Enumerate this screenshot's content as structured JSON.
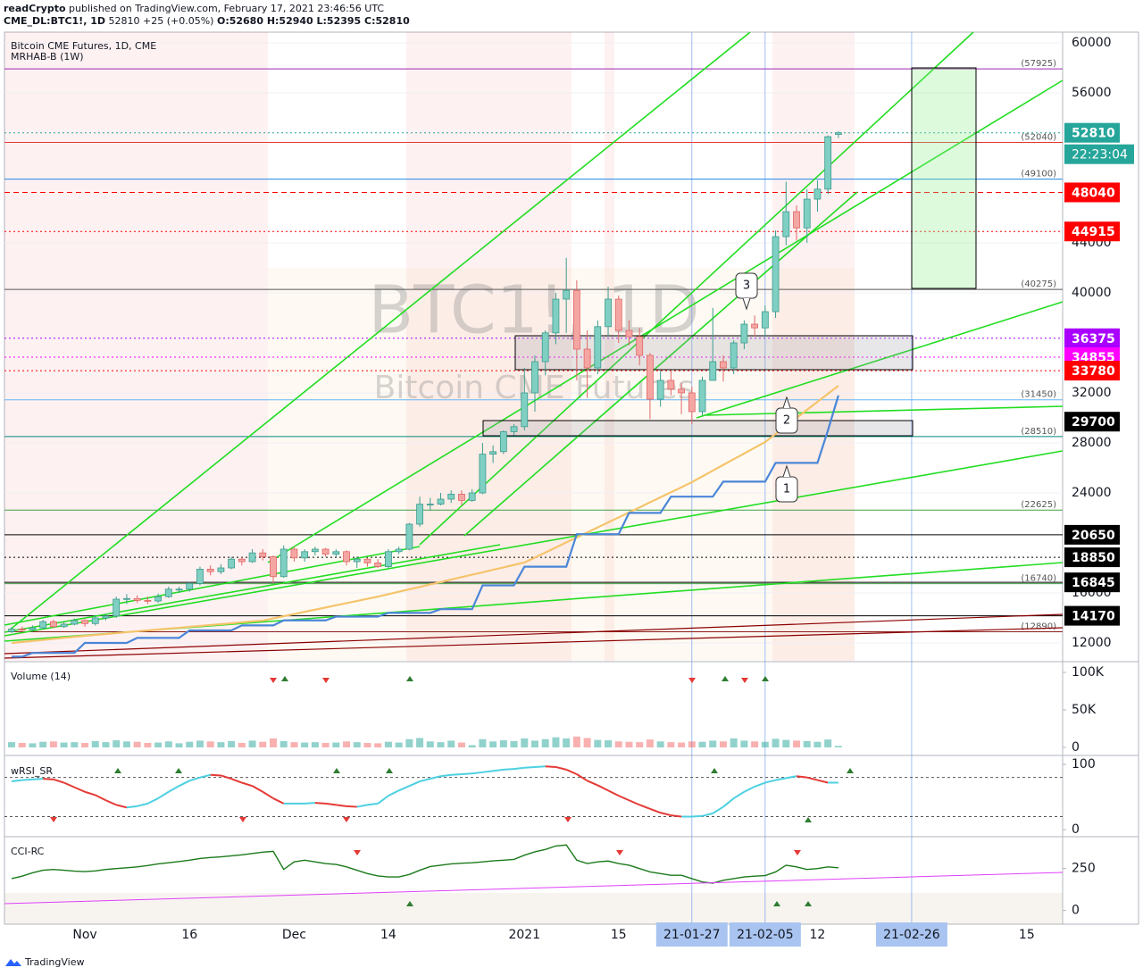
{
  "header": {
    "publisher": "readCrypto",
    "published": "published on TradingView.com, February 17, 2021 23:46:56 UTC",
    "symbol": "CME_DL:BTC1!, 1D",
    "last": "52810",
    "change": "+25 (+0.05%)",
    "ohlc": "O:52680 H:52940 L:52395 C:52810"
  },
  "footer": {
    "brand": "TradingView"
  },
  "chart_data": [
    {
      "type": "candlestick",
      "title": "Bitcoin CME Futures, 1D, CME",
      "subtitle": "MRHAB-B (1W)",
      "watermark": "BTC1!, 1D",
      "watermark_subtitle": "Bitcoin CME Futures",
      "categories": [
        null,
        null,
        null,
        null,
        null,
        null,
        null,
        "Nov",
        null,
        null,
        null,
        null,
        null,
        null,
        null,
        null,
        null,
        "16",
        null,
        null,
        null,
        null,
        null,
        null,
        null,
        null,
        null,
        "Dec",
        null,
        null,
        null,
        null,
        null,
        null,
        null,
        null,
        "14",
        null,
        null,
        null,
        null,
        null,
        null,
        null,
        null,
        null,
        null,
        null,
        null,
        "2021",
        null,
        null,
        null,
        null,
        null,
        null,
        null,
        null,
        "15",
        null,
        null,
        null,
        null,
        null,
        null,
        "21-01-27",
        null,
        null,
        null,
        null,
        null,
        null,
        "21-02-05",
        null,
        null,
        null,
        null,
        "12",
        null,
        null,
        null,
        null,
        null,
        null,
        null,
        null,
        "21-02-26",
        null,
        null,
        null,
        null,
        null,
        null,
        null,
        null,
        null,
        null,
        "15",
        null,
        null
      ],
      "open": [
        12900,
        13100,
        13050,
        13200,
        13700,
        13300,
        13500,
        13800,
        13550,
        14000,
        14150,
        15500,
        15550,
        15400,
        15350,
        15700,
        16300,
        16300,
        16750,
        17900,
        17700,
        18000,
        18700,
        18500,
        19200,
        18900,
        17300,
        19500,
        18800,
        19300,
        19500,
        19100,
        19300,
        18500,
        18700,
        18400,
        18100,
        19300,
        19500,
        21500,
        23100,
        23100,
        23500,
        23900,
        23400,
        24000,
        27100,
        27300,
        28900,
        29300,
        32000,
        34500,
        36800,
        39500,
        40200,
        35500,
        34000,
        37300,
        39500,
        37000,
        36500,
        35000,
        31500,
        33000,
        32300,
        32000,
        30500,
        33000,
        34500,
        34000,
        36000,
        37500,
        37200,
        38500,
        44500,
        46500,
        45200,
        47500,
        48300,
        52680,
        null,
        null,
        null,
        null,
        null,
        null,
        null,
        null,
        null,
        null,
        null,
        null,
        null,
        null,
        null,
        null,
        null,
        null,
        null,
        null
      ],
      "high": [
        13250,
        13300,
        13400,
        13850,
        13850,
        13700,
        13950,
        13900,
        14200,
        14300,
        15700,
        15900,
        15800,
        15700,
        15950,
        16500,
        16500,
        16900,
        18100,
        18200,
        18300,
        18900,
        18900,
        19500,
        19500,
        19000,
        19800,
        19700,
        19500,
        19700,
        19600,
        19500,
        19400,
        18900,
        18800,
        18700,
        19500,
        19700,
        21600,
        23700,
        23600,
        24000,
        24200,
        24200,
        24300,
        28000,
        27800,
        29000,
        29500,
        34000,
        35000,
        37000,
        40000,
        42800,
        41000,
        37000,
        37800,
        40500,
        39800,
        37800,
        37200,
        35200,
        33800,
        33800,
        32800,
        32500,
        33300,
        38800,
        35000,
        36200,
        37800,
        38200,
        39000,
        45000,
        48900,
        47000,
        48300,
        49000,
        52600,
        52940,
        null,
        null,
        null,
        null,
        null,
        null,
        null,
        null,
        null,
        null,
        null,
        null,
        null,
        null,
        null,
        null,
        null,
        null,
        null,
        null
      ],
      "low": [
        12800,
        12900,
        12950,
        13100,
        13200,
        13200,
        13400,
        13300,
        13400,
        13800,
        14000,
        15100,
        15200,
        15100,
        15200,
        15600,
        16000,
        16100,
        16600,
        17400,
        17500,
        17900,
        18200,
        18400,
        18600,
        16800,
        17200,
        18500,
        18500,
        19000,
        18900,
        18900,
        18200,
        18000,
        18100,
        18000,
        18000,
        19100,
        19400,
        21300,
        22600,
        23000,
        23200,
        23000,
        23300,
        23900,
        26400,
        27100,
        28600,
        29000,
        30500,
        33400,
        35900,
        36800,
        33000,
        31600,
        33500,
        36500,
        36000,
        35800,
        34200,
        29900,
        30900,
        31800,
        30300,
        29500,
        30200,
        33000,
        32900,
        33500,
        35500,
        36500,
        36500,
        38000,
        43800,
        44200,
        44000,
        46500,
        47900,
        52395,
        null,
        null,
        null,
        null,
        null,
        null,
        null,
        null,
        null,
        null,
        null,
        null,
        null,
        null,
        null,
        null,
        null,
        null,
        null,
        null
      ],
      "close": [
        13100,
        13050,
        13200,
        13700,
        13300,
        13500,
        13800,
        13550,
        14000,
        14150,
        15500,
        15550,
        15400,
        15350,
        15700,
        16300,
        16300,
        16750,
        17900,
        17700,
        18000,
        18700,
        18500,
        19200,
        18900,
        17300,
        19500,
        18800,
        19300,
        19500,
        19100,
        19300,
        18500,
        18700,
        18400,
        18100,
        19300,
        19500,
        21500,
        23100,
        23100,
        23500,
        23900,
        23400,
        24000,
        27100,
        27300,
        28900,
        29300,
        32000,
        34500,
        36800,
        39500,
        40200,
        35500,
        34000,
        37300,
        39500,
        37000,
        36500,
        35000,
        31500,
        33000,
        32300,
        32000,
        30500,
        33000,
        34500,
        34000,
        36000,
        37500,
        37200,
        38500,
        44500,
        46500,
        45200,
        47500,
        48300,
        52500,
        52810,
        null,
        null,
        null,
        null,
        null,
        null,
        null,
        null,
        null,
        null,
        null,
        null,
        null,
        null,
        null,
        null,
        null,
        null,
        null,
        null
      ],
      "up_color": "#7fcfc3",
      "down_color": "#f4a6a3",
      "overlays": [
        {
          "color": "#f5c46c",
          "values": [
            12000,
            12080,
            12160,
            12240,
            12330,
            12410,
            12490,
            12570,
            12640,
            12710,
            12780,
            12860,
            12930,
            13000,
            13070,
            13140,
            13210,
            13290,
            13360,
            13430,
            13500,
            13570,
            13650,
            13720,
            13790,
            13960,
            14140,
            14310,
            14490,
            14660,
            14830,
            15010,
            15180,
            15350,
            15530,
            15700,
            15900,
            16090,
            16290,
            16480,
            16680,
            16870,
            17070,
            17260,
            17460,
            17650,
            17850,
            18040,
            18240,
            18430,
            18830,
            19230,
            19630,
            20040,
            20440,
            20840,
            21240,
            21640,
            22040,
            22440,
            22840,
            23250,
            23650,
            24050,
            24450,
            24860,
            25320,
            25780,
            26240,
            26700,
            27150,
            27610,
            28070,
            28710,
            29360,
            30000,
            30640,
            31290,
            31930,
            32570
          ]
        },
        {
          "color": "#4a86d8",
          "values": [
            10900,
            10900,
            11200,
            11200,
            11200,
            11200,
            11200,
            12000,
            12000,
            12000,
            12000,
            12000,
            12400,
            12400,
            12400,
            12400,
            12400,
            13000,
            13000,
            13000,
            13000,
            13000,
            13400,
            13400,
            13400,
            13400,
            13800,
            13800,
            13800,
            13800,
            13800,
            14100,
            14100,
            14100,
            14100,
            14100,
            14400,
            14400,
            14400,
            14400,
            14400,
            14700,
            14700,
            14700,
            14700,
            16600,
            16600,
            16600,
            16600,
            18100,
            18100,
            18100,
            18100,
            18100,
            20700,
            20700,
            20700,
            20700,
            20700,
            22400,
            22400,
            22400,
            22400,
            23700,
            23700,
            23700,
            23700,
            23700,
            24900,
            24900,
            24900,
            24900,
            24900,
            26400,
            26400,
            26400,
            26400,
            26400,
            29000,
            31800
          ]
        }
      ],
      "ylim": [
        10570,
        60860
      ],
      "yticks": [
        12000,
        16000,
        24000,
        28000,
        32000,
        40000,
        44000,
        56000,
        60000
      ],
      "grid": true,
      "levels": [
        {
          "value": 57925,
          "label": "(57925)",
          "color": "#9c27b0"
        },
        {
          "value": 52040,
          "label": "(52040)",
          "color": "#e53935"
        },
        {
          "value": 49100,
          "label": "(49100)",
          "color": "#1e88e5"
        },
        {
          "value": 40275,
          "label": "(40275)",
          "color": "#555555"
        },
        {
          "value": 31450,
          "label": "(31450)",
          "color": "#64b5f6"
        },
        {
          "value": 28510,
          "label": "(28510)",
          "color": "#00897b"
        },
        {
          "value": 22625,
          "label": "(22625)",
          "color": "#43a047"
        },
        {
          "value": 16740,
          "label": "(16740)",
          "color": "#43a047"
        },
        {
          "value": 12890,
          "label": "(12890)",
          "color": "#8d1c1c"
        }
      ],
      "price_tags": [
        {
          "value": 52810,
          "color": "#26a69a",
          "line": "dotted"
        },
        {
          "value": 48040,
          "color": "#ff0000",
          "line": "dashed"
        },
        {
          "value": 44915,
          "color": "#ff0000",
          "line": "dotted"
        },
        {
          "value": 36375,
          "color": "#aa00ff",
          "line": "dotted"
        },
        {
          "value": 34855,
          "color": "#ff00ff",
          "line": "dotted"
        },
        {
          "value": 33780,
          "color": "#ff0000",
          "line": "dotted"
        },
        {
          "value": 29700,
          "color": "#000000",
          "line": "none"
        },
        {
          "value": 20650,
          "color": "#000000",
          "line": "solid"
        },
        {
          "value": 18850,
          "color": "#000000",
          "line": "dotted"
        },
        {
          "value": 16845,
          "color": "#000000",
          "line": "solid"
        },
        {
          "value": 14170,
          "color": "#000000",
          "line": "solid"
        }
      ],
      "countdown": "22:23:04",
      "annotations": [
        "1",
        "2",
        "3"
      ]
    },
    {
      "type": "bar",
      "title": "Volume (14)",
      "values": [
        7000,
        6000,
        5500,
        7500,
        8000,
        6500,
        7000,
        6000,
        8500,
        7000,
        9500,
        8000,
        7500,
        6000,
        6500,
        8000,
        5500,
        7500,
        9000,
        8000,
        7000,
        8500,
        6000,
        9000,
        7500,
        12000,
        8500,
        7000,
        6500,
        7000,
        6000,
        6500,
        8000,
        7000,
        6000,
        5500,
        7500,
        6500,
        11000,
        12500,
        8000,
        7000,
        9000,
        6500,
        3000,
        11000,
        8000,
        9500,
        8500,
        12000,
        9000,
        11000,
        13500,
        12000,
        14500,
        12500,
        10000,
        9500,
        8000,
        7500,
        7000,
        10500,
        8000,
        7000,
        6500,
        8000,
        7500,
        9000,
        8000,
        12000,
        9000,
        8000,
        7500,
        11500,
        10000,
        9000,
        8500,
        7500,
        10500,
        2000
      ],
      "ylim": [
        -9520,
        113100
      ],
      "yticks": [
        0,
        {
          "value": 50000,
          "label": "50K"
        },
        {
          "value": 100000,
          "label": "100K"
        }
      ]
    },
    {
      "type": "line",
      "title": "wRSI_SR",
      "values": [
        74,
        76,
        77,
        78,
        77,
        72,
        65,
        58,
        53,
        45,
        38,
        34,
        36,
        40,
        48,
        58,
        67,
        75,
        80,
        84,
        83,
        78,
        72,
        67,
        58,
        48,
        40,
        40,
        40,
        41,
        40,
        38,
        36,
        35,
        38,
        40,
        52,
        60,
        67,
        74,
        78,
        82,
        84,
        85,
        86,
        88,
        90,
        92,
        93,
        95,
        96,
        97,
        96,
        92,
        85,
        75,
        68,
        60,
        52,
        45,
        38,
        32,
        26,
        22,
        20,
        20,
        21,
        25,
        35,
        48,
        58,
        66,
        72,
        76,
        79,
        82,
        80,
        76,
        72,
        72
      ],
      "ylim": [
        -8,
        111
      ],
      "yticks": [
        0,
        100
      ],
      "levels": [
        80,
        20
      ]
    },
    {
      "type": "line",
      "title": "CCI-RC",
      "values": [
        190,
        205,
        225,
        240,
        245,
        240,
        235,
        232,
        236,
        245,
        250,
        255,
        260,
        268,
        278,
        285,
        292,
        300,
        310,
        316,
        320,
        326,
        332,
        340,
        348,
        353,
        245,
        290,
        300,
        290,
        280,
        275,
        260,
        240,
        220,
        206,
        200,
        200,
        215,
        240,
        262,
        270,
        278,
        282,
        285,
        290,
        296,
        300,
        305,
        330,
        350,
        364,
        385,
        391,
        300,
        280,
        290,
        295,
        280,
        270,
        250,
        230,
        220,
        210,
        210,
        190,
        170,
        163,
        180,
        190,
        200,
        205,
        208,
        230,
        270,
        260,
        245,
        250,
        260,
        255
      ],
      "color": "#1b7a1b",
      "ylim": [
        -82,
        435
      ],
      "yticks": [
        0,
        250
      ]
    }
  ]
}
